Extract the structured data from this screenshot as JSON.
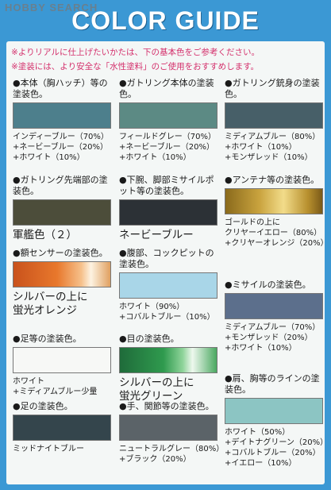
{
  "watermark": "HOBBY SEARCH",
  "header": {
    "title": "COLOR GUIDE",
    "notes": [
      "※よりリアルに仕上げたいかたは、下の基本色をご参考ください。",
      "※塗装には、より安全な「水性塗料」のご使用をおすすめします。"
    ]
  },
  "columns": [
    [
      {
        "heading": "●本体（胸ハッチ）等の塗装色。",
        "lines": [
          "インディーブルー（70%）",
          "+ネービーブルー（20%）",
          "+ホワイト（10%）"
        ]
      },
      {
        "heading": "●ガトリング先端部の塗装色。",
        "name": [
          "軍艦色（２）"
        ]
      },
      {
        "heading": "●額センサーの塗装色。",
        "name": [
          "シルバーの上に",
          "蛍光オレンジ"
        ]
      },
      {
        "heading": "●足等の塗装色。",
        "lines": [
          "ホワイト",
          "+ミディアムブルー少量"
        ]
      },
      {
        "heading": "●足の塗装色。",
        "lines": [
          "ミッドナイトブルー"
        ]
      }
    ],
    [
      {
        "heading": "●ガトリング本体の塗装色。",
        "lines": [
          "フィールドグレー（70%）",
          "+ネービーブルー（20%）",
          "+ホワイト（10%）"
        ]
      },
      {
        "heading": "●下腕、脚部ミサイルポット等の塗装色。",
        "name": [
          "ネービーブルー"
        ]
      },
      {
        "heading": "●腹部、コックピットの塗装色。",
        "lines": [
          "ホワイト（90%）",
          "+コバルトブルー（10%）"
        ]
      },
      {
        "heading": "●目の塗装色。",
        "name": [
          "シルバーの上に",
          "蛍光グリーン"
        ]
      },
      {
        "heading": "●手、関節等の塗装色。",
        "lines": [
          "ニュートラルグレー（80%）",
          "+ブラック（20%）"
        ]
      }
    ],
    [
      {
        "heading": "●ガトリング銃身の塗装色。",
        "lines": [
          "ミディアムブルー（80%）",
          "+ホワイト（10%）",
          "+モンザレッド（10%）"
        ]
      },
      {
        "heading": "●アンテナ等の塗装色。",
        "lines": [
          "ゴールドの上に",
          "クリヤーイエロー（80%）",
          "+クリヤーオレンジ（20%）"
        ]
      },
      {
        "heading": "●ミサイルの塗装色。",
        "lines": [
          "ミディアムブルー（70%）",
          "+モンザレッド（20%）",
          "+ホワイト（10%）"
        ]
      },
      {
        "heading": "●肩、胸等のラインの塗装色。",
        "lines": [
          "ホワイト（50%）",
          "+デイトナグリーン（20%）",
          "+コバルトブルー（20%）",
          "+イエロー（10%）"
        ]
      }
    ]
  ]
}
